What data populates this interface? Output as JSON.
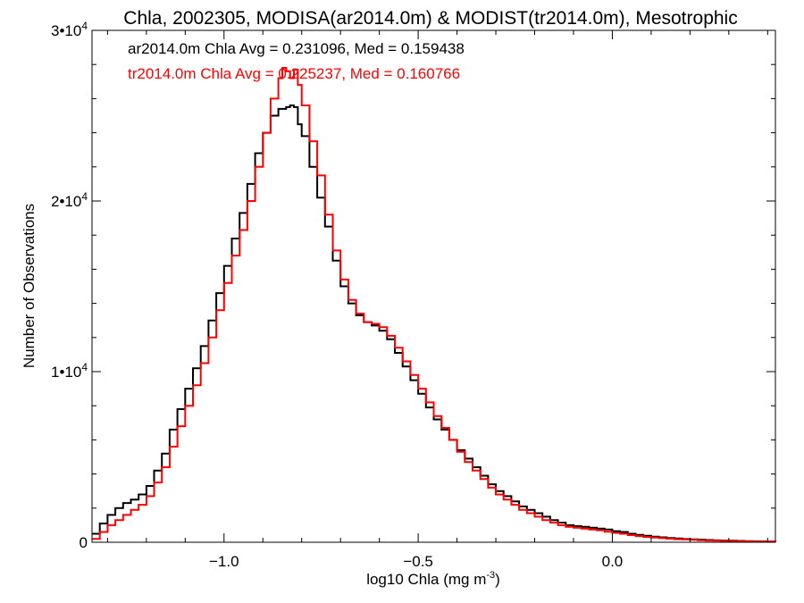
{
  "chart_data": {
    "type": "line",
    "step": true,
    "title": "Chla, 2002305, MODISA(ar2014.0m) & MODIST(tr2014.0m), Mesotrophic",
    "xlabel": "log10 Chla (mg m",
    "xlabel_sup": "-3",
    "xlabel_end": ")",
    "ylabel": "Number of Observations",
    "xlim": [
      -1.34,
      0.42
    ],
    "ylim": [
      0,
      30000
    ],
    "x_ticks": [
      {
        "value": -1.0,
        "label": "−1.0"
      },
      {
        "value": -0.5,
        "label": "−0.5"
      },
      {
        "value": 0.0,
        "label": "0.0"
      }
    ],
    "y_ticks": [
      {
        "value": 0,
        "label": "0",
        "sup": ""
      },
      {
        "value": 10000,
        "label": "1•10",
        "sup": "4"
      },
      {
        "value": 20000,
        "label": "2•10",
        "sup": "4"
      },
      {
        "value": 30000,
        "label": "3•10",
        "sup": "4"
      }
    ],
    "grid": false,
    "annotations": [
      {
        "text": "ar2014.0m Chla Avg = 0.231096, Med = 0.159438",
        "color": "#000000"
      },
      {
        "text": "tr2014.0m Chla Avg = 0.225237, Med = 0.160766",
        "color": "#ff0000"
      }
    ],
    "series": [
      {
        "color": "#000000",
        "points": [
          [
            -1.34,
            500
          ],
          [
            -1.32,
            1100
          ],
          [
            -1.3,
            1600
          ],
          [
            -1.28,
            2000
          ],
          [
            -1.26,
            2300
          ],
          [
            -1.24,
            2500
          ],
          [
            -1.22,
            2800
          ],
          [
            -1.2,
            3300
          ],
          [
            -1.18,
            4200
          ],
          [
            -1.16,
            5200
          ],
          [
            -1.14,
            6600
          ],
          [
            -1.12,
            7800
          ],
          [
            -1.1,
            9000
          ],
          [
            -1.08,
            10200
          ],
          [
            -1.06,
            11500
          ],
          [
            -1.04,
            13000
          ],
          [
            -1.02,
            14600
          ],
          [
            -1.0,
            16200
          ],
          [
            -0.98,
            17800
          ],
          [
            -0.96,
            19300
          ],
          [
            -0.94,
            21000
          ],
          [
            -0.92,
            22800
          ],
          [
            -0.9,
            24000
          ],
          [
            -0.88,
            25000
          ],
          [
            -0.86,
            25400
          ],
          [
            -0.84,
            25500
          ],
          [
            -0.83,
            25600
          ],
          [
            -0.82,
            25500
          ],
          [
            -0.81,
            24500
          ],
          [
            -0.8,
            23800
          ],
          [
            -0.78,
            22000
          ],
          [
            -0.76,
            20200
          ],
          [
            -0.74,
            18500
          ],
          [
            -0.72,
            16500
          ],
          [
            -0.7,
            15000
          ],
          [
            -0.68,
            14000
          ],
          [
            -0.66,
            13300
          ],
          [
            -0.64,
            12900
          ],
          [
            -0.62,
            12700
          ],
          [
            -0.6,
            12400
          ],
          [
            -0.58,
            11900
          ],
          [
            -0.56,
            11100
          ],
          [
            -0.54,
            10300
          ],
          [
            -0.52,
            9500
          ],
          [
            -0.5,
            8700
          ],
          [
            -0.48,
            7900
          ],
          [
            -0.46,
            7200
          ],
          [
            -0.44,
            6600
          ],
          [
            -0.42,
            6000
          ],
          [
            -0.4,
            5400
          ],
          [
            -0.38,
            4900
          ],
          [
            -0.36,
            4400
          ],
          [
            -0.34,
            3900
          ],
          [
            -0.32,
            3400
          ],
          [
            -0.3,
            3000
          ],
          [
            -0.28,
            2700
          ],
          [
            -0.26,
            2400
          ],
          [
            -0.24,
            2100
          ],
          [
            -0.22,
            1900
          ],
          [
            -0.2,
            1700
          ],
          [
            -0.18,
            1500
          ],
          [
            -0.16,
            1300
          ],
          [
            -0.14,
            1150
          ],
          [
            -0.12,
            1000
          ],
          [
            -0.1,
            950
          ],
          [
            -0.08,
            900
          ],
          [
            -0.06,
            850
          ],
          [
            -0.04,
            800
          ],
          [
            -0.02,
            750
          ],
          [
            0.0,
            650
          ],
          [
            0.02,
            600
          ],
          [
            0.04,
            500
          ],
          [
            0.06,
            430
          ],
          [
            0.08,
            380
          ],
          [
            0.1,
            330
          ],
          [
            0.12,
            290
          ],
          [
            0.14,
            250
          ],
          [
            0.16,
            220
          ],
          [
            0.18,
            190
          ],
          [
            0.2,
            170
          ],
          [
            0.22,
            150
          ],
          [
            0.24,
            130
          ],
          [
            0.26,
            110
          ],
          [
            0.28,
            100
          ],
          [
            0.3,
            90
          ],
          [
            0.32,
            80
          ],
          [
            0.34,
            70
          ],
          [
            0.36,
            60
          ],
          [
            0.38,
            50
          ],
          [
            0.4,
            40
          ],
          [
            0.42,
            30
          ]
        ]
      },
      {
        "color": "#ff0000",
        "points": [
          [
            -1.34,
            200
          ],
          [
            -1.32,
            600
          ],
          [
            -1.3,
            1000
          ],
          [
            -1.28,
            1300
          ],
          [
            -1.26,
            1600
          ],
          [
            -1.24,
            1900
          ],
          [
            -1.22,
            2200
          ],
          [
            -1.2,
            2700
          ],
          [
            -1.18,
            3500
          ],
          [
            -1.16,
            4400
          ],
          [
            -1.14,
            5600
          ],
          [
            -1.12,
            6800
          ],
          [
            -1.1,
            8000
          ],
          [
            -1.08,
            9200
          ],
          [
            -1.06,
            10500
          ],
          [
            -1.04,
            12000
          ],
          [
            -1.02,
            13600
          ],
          [
            -1.0,
            15200
          ],
          [
            -0.98,
            16800
          ],
          [
            -0.96,
            18300
          ],
          [
            -0.94,
            20000
          ],
          [
            -0.92,
            22000
          ],
          [
            -0.9,
            24000
          ],
          [
            -0.88,
            26000
          ],
          [
            -0.86,
            27200
          ],
          [
            -0.85,
            27800
          ],
          [
            -0.84,
            27600
          ],
          [
            -0.83,
            27200
          ],
          [
            -0.82,
            27700
          ],
          [
            -0.81,
            26800
          ],
          [
            -0.8,
            25600
          ],
          [
            -0.78,
            23500
          ],
          [
            -0.76,
            21500
          ],
          [
            -0.74,
            19200
          ],
          [
            -0.72,
            17100
          ],
          [
            -0.7,
            15400
          ],
          [
            -0.68,
            14200
          ],
          [
            -0.66,
            13400
          ],
          [
            -0.64,
            12900
          ],
          [
            -0.62,
            12800
          ],
          [
            -0.6,
            12600
          ],
          [
            -0.58,
            12100
          ],
          [
            -0.56,
            11400
          ],
          [
            -0.54,
            10600
          ],
          [
            -0.52,
            9800
          ],
          [
            -0.5,
            9000
          ],
          [
            -0.48,
            8200
          ],
          [
            -0.46,
            7400
          ],
          [
            -0.44,
            6700
          ],
          [
            -0.42,
            6000
          ],
          [
            -0.4,
            5300
          ],
          [
            -0.38,
            4700
          ],
          [
            -0.36,
            4200
          ],
          [
            -0.34,
            3700
          ],
          [
            -0.32,
            3200
          ],
          [
            -0.3,
            2800
          ],
          [
            -0.28,
            2500
          ],
          [
            -0.26,
            2200
          ],
          [
            -0.24,
            1900
          ],
          [
            -0.22,
            1700
          ],
          [
            -0.2,
            1500
          ],
          [
            -0.18,
            1300
          ],
          [
            -0.16,
            1150
          ],
          [
            -0.14,
            1000
          ],
          [
            -0.12,
            900
          ],
          [
            -0.1,
            850
          ],
          [
            -0.08,
            800
          ],
          [
            -0.06,
            750
          ],
          [
            -0.04,
            700
          ],
          [
            -0.02,
            620
          ],
          [
            0.0,
            550
          ],
          [
            0.02,
            500
          ],
          [
            0.04,
            420
          ],
          [
            0.06,
            360
          ],
          [
            0.08,
            310
          ],
          [
            0.1,
            270
          ],
          [
            0.12,
            240
          ],
          [
            0.14,
            210
          ],
          [
            0.16,
            180
          ],
          [
            0.18,
            160
          ],
          [
            0.2,
            140
          ],
          [
            0.22,
            120
          ],
          [
            0.24,
            100
          ],
          [
            0.26,
            90
          ],
          [
            0.28,
            80
          ],
          [
            0.3,
            70
          ],
          [
            0.32,
            60
          ],
          [
            0.34,
            50
          ],
          [
            0.36,
            45
          ],
          [
            0.38,
            40
          ],
          [
            0.4,
            35
          ],
          [
            0.42,
            25
          ]
        ]
      }
    ]
  }
}
